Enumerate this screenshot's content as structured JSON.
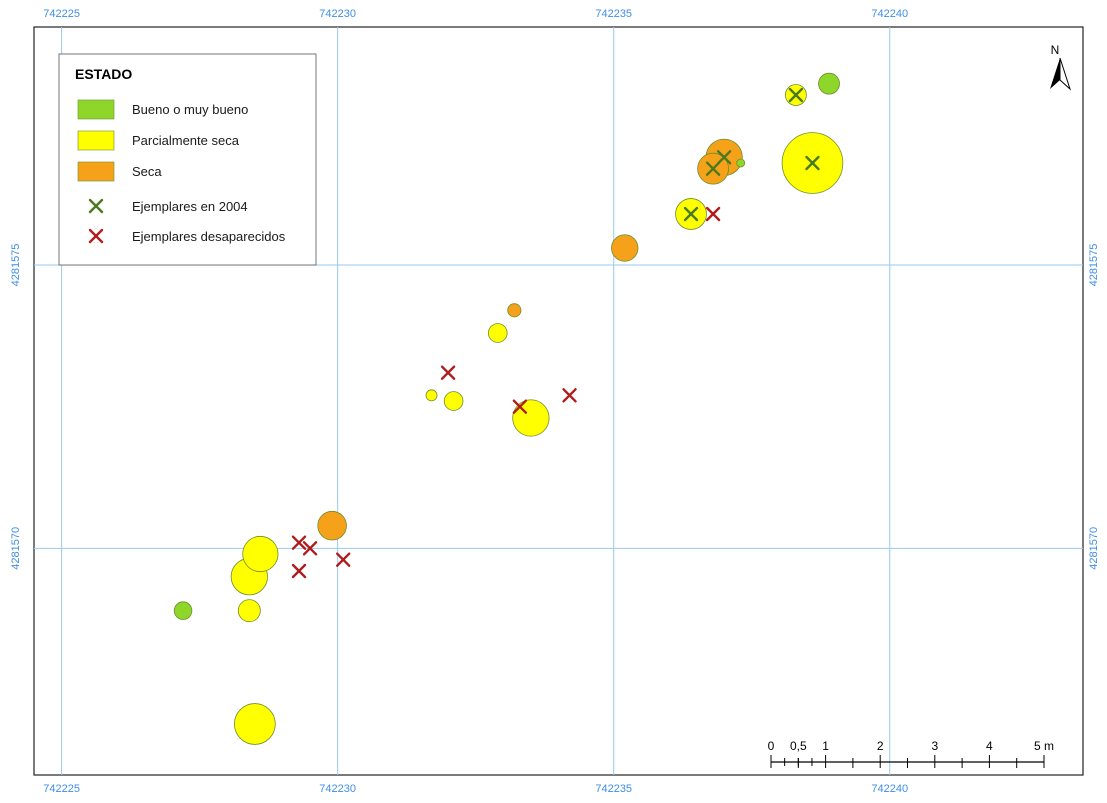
{
  "map": {
    "crs_labels": {
      "x_ticks": [
        742225,
        742230,
        742235,
        742240
      ],
      "y_ticks": [
        4281575,
        4281570
      ]
    },
    "x_range": [
      742224.5,
      742243.5
    ],
    "y_range": [
      4281566.0,
      4281579.2
    ],
    "north_label": "N"
  },
  "legend": {
    "title": "ESTADO",
    "items": [
      {
        "label": "Bueno o muy bueno",
        "symbol": "patch",
        "color": "#8fd62a"
      },
      {
        "label": "Parcialmente seca",
        "symbol": "patch",
        "color": "#ffff00"
      },
      {
        "label": "Seca",
        "symbol": "patch",
        "color": "#f5a11a"
      },
      {
        "label": "Ejemplares en 2004",
        "symbol": "x",
        "color": "#4a7a1e"
      },
      {
        "label": "Ejemplares desaparecidos",
        "symbol": "x",
        "color": "#b01b1b"
      }
    ]
  },
  "scale_bar": {
    "labels": [
      "0",
      "0,5",
      "1",
      "2",
      "3",
      "4",
      "5 m"
    ],
    "label_positions_m": [
      0,
      0.5,
      1,
      2,
      3,
      4,
      5
    ]
  },
  "features": {
    "trees": [
      {
        "x": 742238.9,
        "y": 4281578.2,
        "status": "bueno",
        "r": 0.19
      },
      {
        "x": 742238.3,
        "y": 4281578.0,
        "status": "parcial",
        "r": 0.19
      },
      {
        "x": 742237.0,
        "y": 4281576.9,
        "status": "seca",
        "r": 0.33
      },
      {
        "x": 742236.8,
        "y": 4281576.7,
        "status": "seca",
        "r": 0.28
      },
      {
        "x": 742237.3,
        "y": 4281576.8,
        "status": "bueno",
        "r": 0.06
      },
      {
        "x": 742238.6,
        "y": 4281576.8,
        "status": "parcial",
        "r": 0.55
      },
      {
        "x": 742236.4,
        "y": 4281575.9,
        "status": "parcial",
        "r": 0.28
      },
      {
        "x": 742235.2,
        "y": 4281575.3,
        "status": "seca",
        "r": 0.24
      },
      {
        "x": 742233.2,
        "y": 4281574.2,
        "status": "seca",
        "r": 0.12
      },
      {
        "x": 742232.9,
        "y": 4281573.8,
        "status": "parcial",
        "r": 0.17
      },
      {
        "x": 742231.7,
        "y": 4281572.7,
        "status": "parcial",
        "r": 0.1
      },
      {
        "x": 742232.1,
        "y": 4281572.6,
        "status": "parcial",
        "r": 0.17
      },
      {
        "x": 742233.5,
        "y": 4281572.3,
        "status": "parcial",
        "r": 0.33
      },
      {
        "x": 742229.9,
        "y": 4281570.4,
        "status": "seca",
        "r": 0.26
      },
      {
        "x": 742228.6,
        "y": 4281569.9,
        "status": "parcial",
        "r": 0.32
      },
      {
        "x": 742228.4,
        "y": 4281569.5,
        "status": "parcial",
        "r": 0.33
      },
      {
        "x": 742228.4,
        "y": 4281568.9,
        "status": "parcial",
        "r": 0.2
      },
      {
        "x": 742227.2,
        "y": 4281568.9,
        "status": "bueno",
        "r": 0.16
      },
      {
        "x": 742228.5,
        "y": 4281566.9,
        "status": "parcial",
        "r": 0.37
      }
    ],
    "markers_2004": [
      {
        "x": 742238.3,
        "y": 4281578.0
      },
      {
        "x": 742237.0,
        "y": 4281576.9
      },
      {
        "x": 742236.8,
        "y": 4281576.7
      },
      {
        "x": 742238.6,
        "y": 4281576.8
      },
      {
        "x": 742236.4,
        "y": 4281575.9
      }
    ],
    "markers_missing": [
      {
        "x": 742236.8,
        "y": 4281575.9
      },
      {
        "x": 742232.0,
        "y": 4281573.1
      },
      {
        "x": 742233.3,
        "y": 4281572.5
      },
      {
        "x": 742234.2,
        "y": 4281572.7
      },
      {
        "x": 742229.3,
        "y": 4281570.1
      },
      {
        "x": 742229.5,
        "y": 4281570.0
      },
      {
        "x": 742229.3,
        "y": 4281569.6
      },
      {
        "x": 742230.1,
        "y": 4281569.8
      }
    ]
  },
  "colors": {
    "bueno": "#8fd62a",
    "parcial": "#ffff00",
    "seca": "#f5a11a",
    "circle_stroke": "#6d8f2a",
    "x_2004": "#4a7a1e",
    "x_missing": "#b01b1b",
    "grid": "#9ac8f0"
  }
}
